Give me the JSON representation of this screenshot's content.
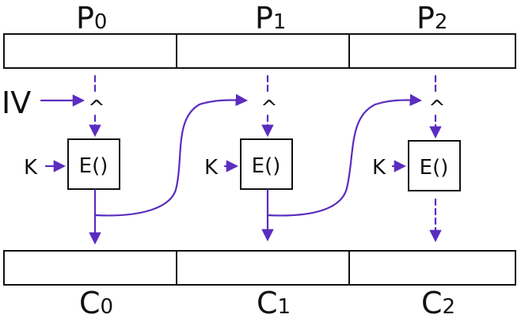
{
  "plaintext_labels": [
    {
      "letter": "P",
      "index": "0"
    },
    {
      "letter": "P",
      "index": "1"
    },
    {
      "letter": "P",
      "index": "2"
    }
  ],
  "ciphertext_labels": [
    {
      "letter": "C",
      "index": "0"
    },
    {
      "letter": "C",
      "index": "1"
    },
    {
      "letter": "C",
      "index": "2"
    }
  ],
  "iv_label": "IV",
  "key_label": "K",
  "xor_symbol": "^",
  "encrypt_label": "E()",
  "colors": {
    "arrow": "#5a2dbf",
    "ink": "#111111"
  }
}
